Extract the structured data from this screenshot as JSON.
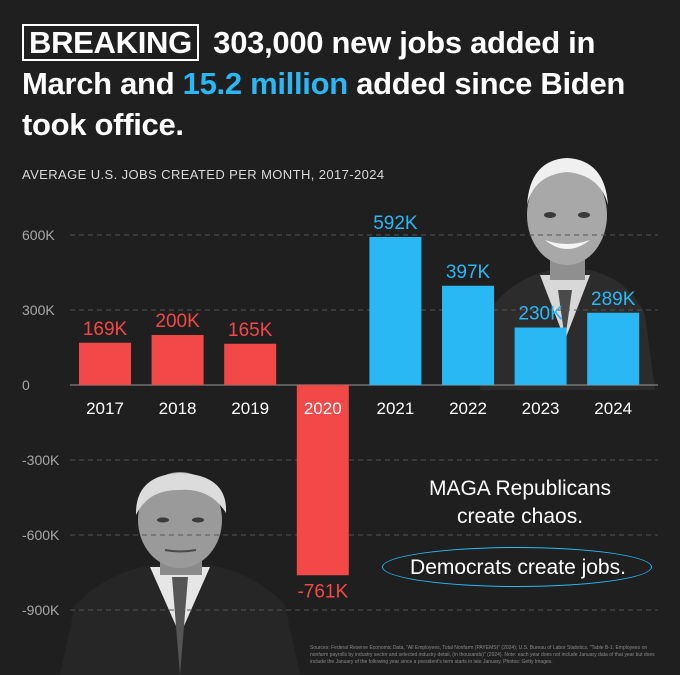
{
  "headline": {
    "tag": "BREAKING",
    "part1": " 303,000 new jobs added in March and ",
    "highlight": "15.2 million",
    "part2": " added since Biden took office."
  },
  "subtitle": "AVERAGE U.S. JOBS CREATED PER MONTH, 2017-2024",
  "callouts": {
    "republicans": "MAGA Republicans create chaos.",
    "democrats": "Democrats create jobs."
  },
  "sources": "Sources: Federal Reserve Economic Data, \"All Employees, Total Nonfarm (PAYEMS)\" (2024); U.S. Bureau of Labor Statistics, \"Table B-1. Employees on nonfarm payrolls by industry sector and selected industry detail, (in thousands)\" (2024). Note: each year does not include January data of that year but does include the January of the following year since a president's term starts in late January. Photos: Getty Images.",
  "colors": {
    "background": "#1f1f1f",
    "republican": "#f24848",
    "democrat": "#2ab8f5",
    "grid": "#555555"
  },
  "chart_data": {
    "type": "bar",
    "categories": [
      "2017",
      "2018",
      "2019",
      "2020",
      "2021",
      "2022",
      "2023",
      "2024"
    ],
    "values": [
      169,
      200,
      165,
      -761,
      592,
      397,
      230,
      289
    ],
    "data_labels": [
      "169K",
      "200K",
      "165K",
      "-761K",
      "592K",
      "397K",
      "230K",
      "289K"
    ],
    "bar_colors": [
      "republican",
      "republican",
      "republican",
      "republican",
      "democrat",
      "democrat",
      "democrat",
      "democrat"
    ],
    "title": "AVERAGE U.S. JOBS CREATED PER MONTH, 2017-2024",
    "xlabel": "",
    "ylabel": "",
    "unit": "thousands",
    "yticks": [
      600,
      300,
      0,
      -300,
      -600,
      -900
    ],
    "ytick_labels": [
      "600K",
      "300K",
      "0",
      "-300K",
      "-600K",
      "-900K"
    ],
    "ylim": [
      -900,
      600
    ],
    "grid": true
  }
}
